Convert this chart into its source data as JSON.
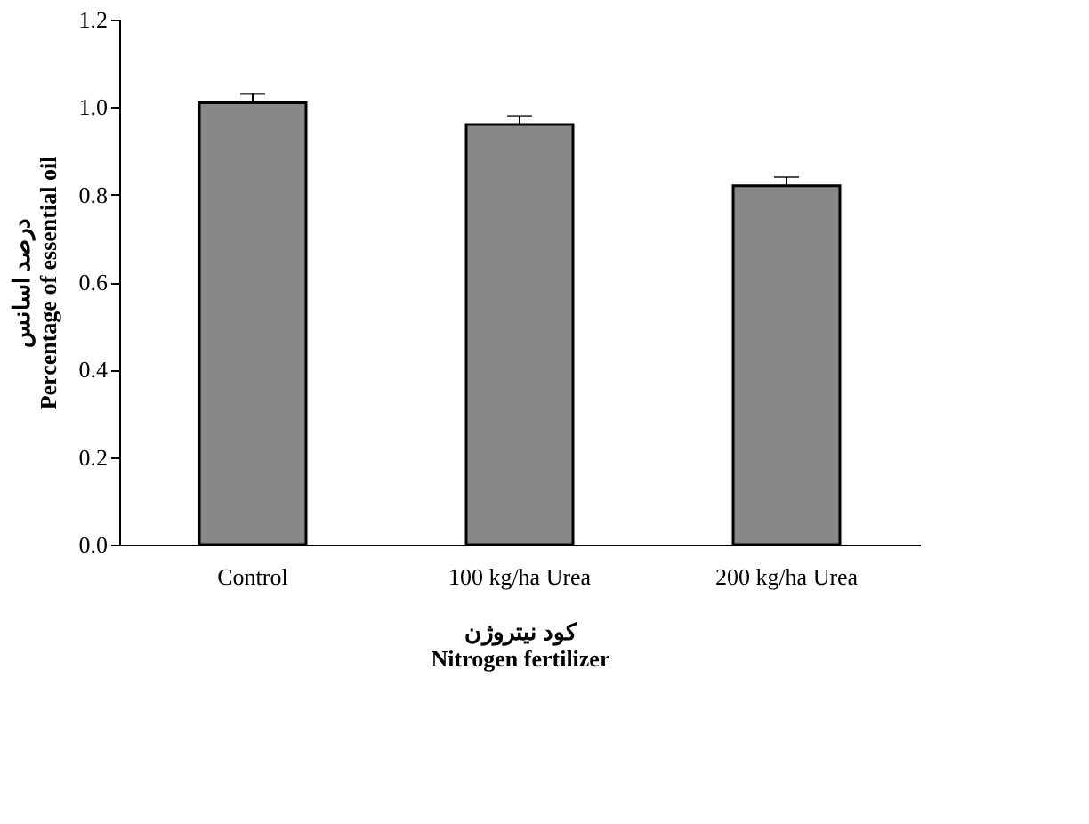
{
  "chart_data": {
    "type": "bar",
    "categories": [
      "Control",
      "100 kg/ha Urea",
      "200 kg/ha Urea"
    ],
    "values": [
      1.01,
      0.96,
      0.82
    ],
    "errors": [
      [
        1.01,
        1.03
      ],
      [
        0.96,
        0.98
      ],
      [
        0.82,
        0.84
      ]
    ],
    "color": "#888888",
    "xlabel": "کود نیتروژن\nNitrogen fertilizer",
    "ylabel": "درصد اسانس\nPercentage of essential oil",
    "ylim": [
      0,
      1.2
    ],
    "yticks": [
      {
        "value": 0,
        "label": "0.0"
      },
      {
        "value": 0.2,
        "label": "0.2"
      },
      {
        "value": 0.4,
        "label": "0.4"
      },
      {
        "value": 0.6,
        "label": "0.6"
      },
      {
        "value": 0.8,
        "label": "0.8"
      },
      {
        "value": 1.0,
        "label": "1.0"
      },
      {
        "value": 1.2,
        "label": "1.2"
      }
    ],
    "grid": false
  }
}
